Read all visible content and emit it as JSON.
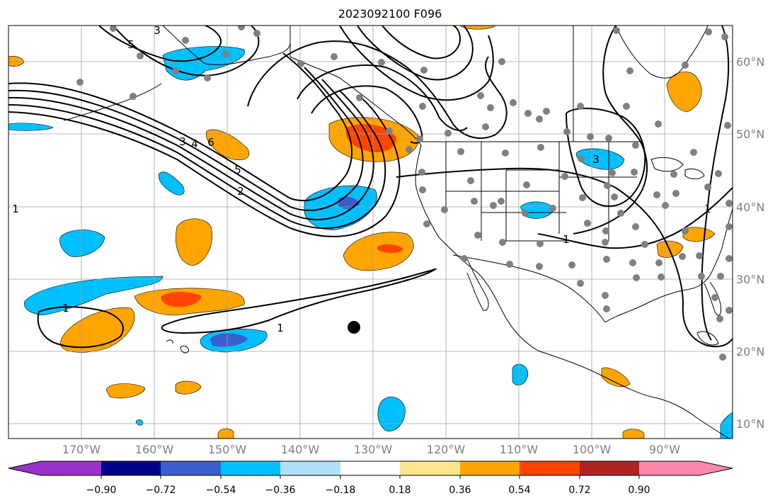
{
  "title": "2023092100 F096",
  "map": {
    "longitude_labels": [
      "170°W",
      "160°W",
      "150°W",
      "140°W",
      "130°W",
      "120°W",
      "110°W",
      "100°W",
      "90°W"
    ],
    "latitude_labels": [
      "60°N",
      "50°N",
      "40°N",
      "30°N",
      "20°N",
      "10°N"
    ],
    "contour_labels": [
      "3",
      "5",
      "3",
      "4",
      "6",
      "5",
      "2",
      "1",
      "1",
      "1",
      "3",
      "1",
      "1",
      "1"
    ],
    "colors": {
      "coastline": "#000000",
      "gridline": "#a0a0a0",
      "station_dot": "#808080",
      "marker": "#000000"
    },
    "markers": [
      "storm-center-dot"
    ]
  },
  "colorbar": {
    "tick_labels": [
      "−0.90",
      "−0.72",
      "−0.54",
      "−0.36",
      "−0.18",
      "0.18",
      "0.36",
      "0.54",
      "0.72",
      "0.90"
    ],
    "colors": [
      "#9932cc",
      "#00008b",
      "#3a5fcd",
      "#00bfff",
      "#b0e0f8",
      "#ffffff",
      "#fce58c",
      "#ffa500",
      "#ff4500",
      "#b22222",
      "#ff88aa"
    ]
  }
}
